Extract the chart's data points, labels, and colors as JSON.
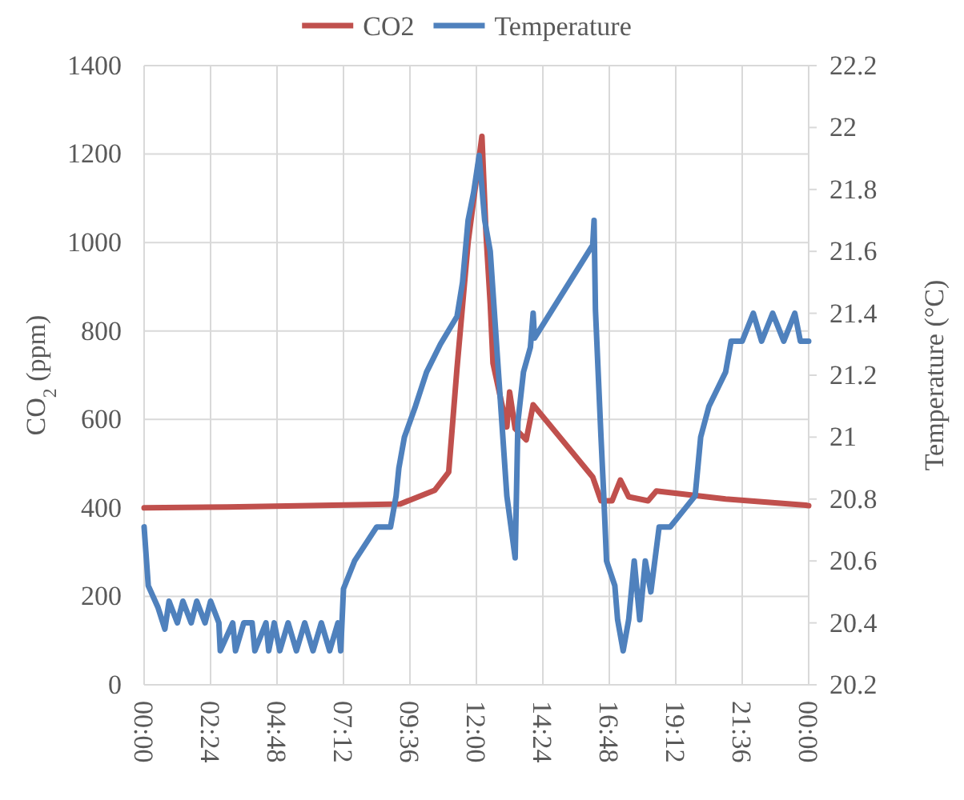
{
  "chart_data": {
    "type": "line",
    "ylabel": "CO$_{2}$ (ppm)",
    "y2label": "Temperature (°C)",
    "xlim": [
      0,
      24
    ],
    "xticks": [
      {
        "value": 0,
        "label": "00:00"
      },
      {
        "value": 2.4,
        "label": "02:24"
      },
      {
        "value": 4.8,
        "label": "04:48"
      },
      {
        "value": 7.2,
        "label": "07:12"
      },
      {
        "value": 9.6,
        "label": "09:36"
      },
      {
        "value": 12,
        "label": "12:00"
      },
      {
        "value": 14.4,
        "label": "14:24"
      },
      {
        "value": 16.8,
        "label": "16:48"
      },
      {
        "value": 19.2,
        "label": "19:12"
      },
      {
        "value": 21.6,
        "label": "21:36"
      },
      {
        "value": 24,
        "label": "00:00"
      }
    ],
    "ylim": [
      0,
      1400
    ],
    "yticks": [
      0,
      200,
      400,
      600,
      800,
      1000,
      1200,
      1400
    ],
    "y2lim": [
      20.2,
      22.2
    ],
    "y2ticks": [
      20.2,
      20.4,
      20.6,
      20.8,
      21,
      21.2,
      21.4,
      21.6,
      21.8,
      22,
      22.2
    ],
    "grid": true,
    "legend": "top",
    "marker": "none",
    "line_style": "solid",
    "series": [
      {
        "name": "CO2",
        "color": "#c0504d",
        "x": [
          0,
          3,
          6,
          9.25,
          10.5,
          11,
          11.3,
          11.7,
          12.2,
          12.35,
          12.5,
          12.6,
          13.1,
          13.2,
          13.4,
          13.8,
          14.05,
          16.2,
          16.5,
          16.9,
          17.2,
          17.5,
          18.2,
          18.5,
          21,
          23.9,
          24
        ],
        "values": [
          400,
          402,
          405,
          409,
          440,
          481,
          716,
          1000,
          1240,
          1017,
          861,
          727,
          583,
          662,
          579,
          554,
          633,
          470,
          416,
          416,
          463,
          425,
          416,
          438,
          420,
          406,
          405
        ]
      },
      {
        "name": "Temperature",
        "axis": "y2",
        "color": "#4f81bd",
        "x": [
          0,
          0.15,
          0.5,
          0.75,
          0.9,
          1.2,
          1.4,
          1.7,
          1.9,
          2.2,
          2.4,
          2.7,
          2.75,
          3.2,
          3.3,
          3.6,
          3.7,
          3.9,
          4.0,
          4.4,
          4.5,
          4.7,
          4.9,
          5.2,
          5.5,
          5.8,
          6.1,
          6.4,
          6.7,
          7.0,
          7.1,
          7.2,
          7.6,
          8.4,
          8.9,
          9.1,
          9.2,
          9.4,
          9.8,
          10.2,
          10.7,
          11.3,
          11.5,
          11.7,
          11.9,
          12.1,
          12.3,
          12.5,
          13.1,
          13.4,
          13.5,
          13.7,
          13.95,
          14.05,
          14.1,
          16.2,
          16.25,
          16.3,
          16.5,
          16.6,
          16.7,
          17.0,
          17.1,
          17.3,
          17.5,
          17.7,
          17.9,
          18.1,
          18.3,
          18.6,
          19.0,
          19.9,
          20.1,
          20.4,
          21.0,
          21.2,
          21.6,
          22.0,
          22.3,
          22.7,
          23.1,
          23.5,
          23.7,
          24
        ],
        "values": [
          20.71,
          20.52,
          20.45,
          20.38,
          20.47,
          20.4,
          20.47,
          20.4,
          20.47,
          20.4,
          20.47,
          20.4,
          20.31,
          20.4,
          20.31,
          20.4,
          20.4,
          20.4,
          20.31,
          20.4,
          20.31,
          20.4,
          20.31,
          20.4,
          20.31,
          20.4,
          20.31,
          20.4,
          20.31,
          20.4,
          20.31,
          20.51,
          20.6,
          20.71,
          20.71,
          20.81,
          20.9,
          21.0,
          21.1,
          21.21,
          21.3,
          21.39,
          21.5,
          21.7,
          21.79,
          21.91,
          21.7,
          21.6,
          20.81,
          20.61,
          21.05,
          21.21,
          21.29,
          21.4,
          21.32,
          21.62,
          21.7,
          21.41,
          21.0,
          20.81,
          20.6,
          20.52,
          20.41,
          20.31,
          20.41,
          20.6,
          20.41,
          20.6,
          20.5,
          20.71,
          20.71,
          20.81,
          21.0,
          21.1,
          21.21,
          21.31,
          21.31,
          21.4,
          21.31,
          21.4,
          21.31,
          21.4,
          21.31,
          21.31
        ]
      }
    ]
  }
}
